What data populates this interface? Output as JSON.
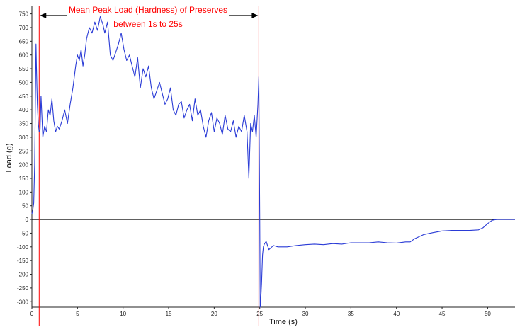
{
  "chart_data": {
    "type": "line",
    "xlabel": "Time (s)",
    "ylabel": "Load (g)",
    "xlim": [
      0,
      53
    ],
    "ylim": [
      -320,
      780
    ],
    "x_ticks": [
      0,
      5,
      10,
      15,
      20,
      25,
      30,
      35,
      40,
      45,
      50
    ],
    "y_ticks": [
      -300,
      -250,
      -200,
      -150,
      -100,
      -50,
      0,
      50,
      100,
      150,
      200,
      250,
      300,
      350,
      400,
      450,
      500,
      550,
      600,
      650,
      700,
      750
    ],
    "grid": false,
    "zero_line": true,
    "annotation": {
      "line1": "Mean Peak Load (Hardness) of Preserves",
      "line2": "between 1s to 25s",
      "color": "#ff0000",
      "marker_x": [
        0.8,
        24.9
      ]
    },
    "series": [
      {
        "color": "#2a3bd6",
        "x": [
          0,
          0.1,
          0.2,
          0.3,
          0.4,
          0.45,
          0.5,
          0.6,
          0.7,
          0.8,
          0.9,
          1.0,
          1.2,
          1.4,
          1.6,
          1.8,
          2.0,
          2.2,
          2.4,
          2.6,
          2.8,
          3.0,
          3.3,
          3.6,
          3.9,
          4.2,
          4.5,
          4.8,
          5.0,
          5.2,
          5.4,
          5.6,
          5.8,
          6.0,
          6.3,
          6.6,
          6.9,
          7.2,
          7.5,
          7.8,
          8.0,
          8.3,
          8.6,
          8.9,
          9.2,
          9.5,
          9.8,
          10.1,
          10.4,
          10.7,
          11.0,
          11.3,
          11.6,
          11.9,
          12.2,
          12.5,
          12.8,
          13.1,
          13.4,
          13.7,
          14.0,
          14.3,
          14.6,
          14.9,
          15.2,
          15.5,
          15.8,
          16.1,
          16.4,
          16.7,
          17.0,
          17.3,
          17.6,
          17.9,
          18.2,
          18.5,
          18.8,
          19.1,
          19.4,
          19.7,
          20.0,
          20.3,
          20.6,
          20.9,
          21.2,
          21.5,
          21.8,
          22.1,
          22.4,
          22.7,
          23.0,
          23.3,
          23.6,
          23.8,
          24.0,
          24.2,
          24.4,
          24.6,
          24.8,
          24.9,
          25.0,
          25.05,
          25.1,
          25.2,
          25.3,
          25.4,
          25.5,
          25.7,
          26.0,
          26.5,
          27.0,
          28.0,
          29.0,
          30.0,
          31.0,
          32.0,
          33.0,
          34.0,
          35.0,
          36.0,
          37.0,
          38.0,
          39.0,
          40.0,
          41.0,
          41.5,
          42.0,
          43.0,
          44.0,
          45.0,
          46.0,
          47.0,
          48.0,
          49.0,
          49.5,
          50.0,
          50.5,
          51.0,
          52.0,
          53.0
        ],
        "y": [
          20,
          35,
          60,
          200,
          480,
          640,
          560,
          420,
          350,
          320,
          330,
          450,
          300,
          340,
          320,
          400,
          380,
          440,
          360,
          320,
          340,
          330,
          360,
          400,
          350,
          420,
          480,
          560,
          600,
          580,
          620,
          560,
          600,
          660,
          700,
          680,
          720,
          690,
          740,
          710,
          680,
          720,
          600,
          580,
          610,
          640,
          680,
          620,
          580,
          600,
          560,
          520,
          590,
          480,
          550,
          520,
          560,
          480,
          440,
          470,
          500,
          460,
          420,
          440,
          480,
          400,
          380,
          420,
          430,
          370,
          400,
          420,
          360,
          440,
          380,
          400,
          340,
          300,
          360,
          390,
          320,
          370,
          350,
          310,
          380,
          330,
          320,
          360,
          300,
          340,
          320,
          380,
          320,
          150,
          350,
          320,
          380,
          300,
          420,
          520,
          0,
          -320,
          -300,
          -230,
          -130,
          -100,
          -90,
          -80,
          -110,
          -95,
          -100,
          -100,
          -95,
          -92,
          -90,
          -92,
          -88,
          -90,
          -85,
          -85,
          -85,
          -82,
          -85,
          -86,
          -82,
          -82,
          -70,
          -55,
          -48,
          -42,
          -40,
          -40,
          -40,
          -38,
          -30,
          -15,
          -3,
          0,
          0,
          0
        ]
      }
    ]
  }
}
